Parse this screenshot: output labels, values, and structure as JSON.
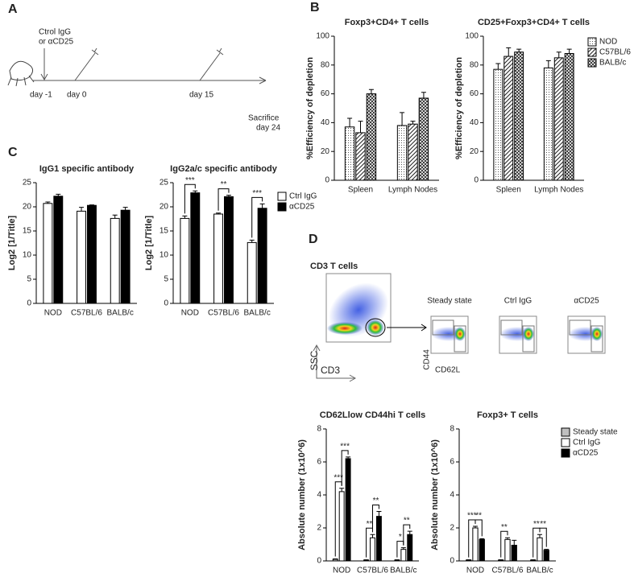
{
  "panel_labels": [
    "A",
    "B",
    "C",
    "D"
  ],
  "timeline": {
    "treatment": [
      "Ctrol IgG",
      "or αCD25"
    ],
    "days": [
      "day -1",
      "day 0",
      "day 15"
    ],
    "end": [
      "Sacrifice",
      "day 24"
    ]
  },
  "flow": {
    "title": "CD3 T cells",
    "y_axis": "SSC",
    "x_axis": "CD3",
    "conditions": [
      "Steady state",
      "Ctrl IgG",
      "αCD25"
    ],
    "gate_y": "CD44",
    "gate_x": "CD62L"
  },
  "chart_data": [
    {
      "type": "bar",
      "title": "Foxp3+CD4+ T cells",
      "ylabel": "%Efficiency of depletion",
      "categories": [
        "Spleen",
        "Lymph Nodes"
      ],
      "ylim": [
        0,
        100
      ],
      "yticks": [
        0,
        20,
        40,
        60,
        80,
        100
      ],
      "series": [
        {
          "name": "NOD",
          "color": "#ffffff",
          "pattern": "dots",
          "values": [
            37,
            38
          ],
          "errors": [
            6,
            9
          ]
        },
        {
          "name": "C57BL/6",
          "color": "#ffffff",
          "pattern": "diagonal",
          "values": [
            33,
            39
          ],
          "errors": [
            8,
            2
          ]
        },
        {
          "name": "BALB/c",
          "color": "#ffffff",
          "pattern": "cross",
          "values": [
            60,
            57
          ],
          "errors": [
            3,
            4
          ]
        }
      ]
    },
    {
      "type": "bar",
      "title": "CD25+Foxp3+CD4+ T cells",
      "ylabel": "%Efficiency of depletion",
      "categories": [
        "Spleen",
        "Lymph Nodes"
      ],
      "ylim": [
        0,
        100
      ],
      "yticks": [
        0,
        20,
        40,
        60,
        80,
        100
      ],
      "legend": "right",
      "series": [
        {
          "name": "NOD",
          "color": "#ffffff",
          "pattern": "dots",
          "values": [
            77,
            78
          ],
          "errors": [
            4,
            5
          ]
        },
        {
          "name": "C57BL/6",
          "color": "#ffffff",
          "pattern": "diagonal",
          "values": [
            86,
            85
          ],
          "errors": [
            6,
            4
          ]
        },
        {
          "name": "BALB/c",
          "color": "#ffffff",
          "pattern": "cross",
          "values": [
            89,
            88
          ],
          "errors": [
            2,
            3
          ]
        }
      ]
    },
    {
      "type": "bar",
      "title": "IgG1 specific antibody",
      "ylabel": "Log2 [1/Title]",
      "categories": [
        "NOD",
        "C57BL/6",
        "BALB/c"
      ],
      "ylim": [
        0,
        25
      ],
      "yticks": [
        0,
        5,
        10,
        15,
        20,
        25
      ],
      "series": [
        {
          "name": "Ctrl IgG",
          "color": "#ffffff",
          "values": [
            20.7,
            19.1,
            17.6
          ],
          "errors": [
            0.3,
            0.8,
            0.7
          ]
        },
        {
          "name": "αCD25",
          "color": "#000000",
          "values": [
            22.2,
            20.3,
            19.3
          ],
          "errors": [
            0.4,
            0.1,
            0.6
          ]
        }
      ]
    },
    {
      "type": "bar",
      "title": "IgG2a/c specific antibody",
      "ylabel": "Log2 [1/Title]",
      "categories": [
        "NOD",
        "C57BL/6",
        "BALB/c"
      ],
      "ylim": [
        0,
        25
      ],
      "yticks": [
        0,
        5,
        10,
        15,
        20,
        25
      ],
      "legend": "right",
      "series": [
        {
          "name": "Ctrl IgG",
          "color": "#ffffff",
          "values": [
            17.6,
            18.5,
            12.6
          ],
          "errors": [
            0.5,
            0.2,
            0.5
          ]
        },
        {
          "name": "αCD25",
          "color": "#000000",
          "values": [
            22.9,
            22.1,
            19.7
          ],
          "errors": [
            0.4,
            0.3,
            0.9
          ]
        }
      ],
      "annotations": [
        {
          "text": "***",
          "category": "NOD",
          "from": "Ctrl IgG",
          "to": "αCD25"
        },
        {
          "text": "**",
          "category": "C57BL/6",
          "from": "Ctrl IgG",
          "to": "αCD25"
        },
        {
          "text": "***",
          "category": "BALB/c",
          "from": "Ctrl IgG",
          "to": "αCD25"
        }
      ]
    },
    {
      "type": "bar",
      "title": "CD62Llow CD44hi T cells",
      "ylabel": "Absolute number (1x10^6)",
      "categories": [
        "NOD",
        "C57BL/6",
        "BALB/c"
      ],
      "ylim": [
        0,
        8
      ],
      "yticks": [
        0,
        2,
        4,
        6,
        8
      ],
      "series": [
        {
          "name": "Steady state",
          "color": "#bfbfbf",
          "values": [
            0.1,
            0.05,
            0.05
          ],
          "errors": [
            0.02,
            0.02,
            0.02
          ]
        },
        {
          "name": "Ctrl IgG",
          "color": "#ffffff",
          "values": [
            4.2,
            1.4,
            0.7
          ],
          "errors": [
            0.2,
            0.2,
            0.1
          ]
        },
        {
          "name": "αCD25",
          "color": "#000000",
          "values": [
            6.2,
            2.7,
            1.6
          ],
          "errors": [
            0.1,
            0.3,
            0.2
          ]
        }
      ],
      "annotations": [
        {
          "text": "***",
          "category": "NOD",
          "from": "Steady state",
          "to": "Ctrl IgG"
        },
        {
          "text": "***",
          "category": "NOD",
          "from": "Ctrl IgG",
          "to": "αCD25"
        },
        {
          "text": "**",
          "category": "C57BL/6",
          "from": "Steady state",
          "to": "Ctrl IgG"
        },
        {
          "text": "**",
          "category": "C57BL/6",
          "from": "Ctrl IgG",
          "to": "αCD25"
        },
        {
          "text": "*",
          "category": "BALB/c",
          "from": "Steady state",
          "to": "Ctrl IgG"
        },
        {
          "text": "**",
          "category": "BALB/c",
          "from": "Ctrl IgG",
          "to": "αCD25"
        }
      ]
    },
    {
      "type": "bar",
      "title": "Foxp3+ T cells",
      "ylabel": "Absolute number (1x10^6)",
      "categories": [
        "NOD",
        "C57BL/6",
        "BALB/c"
      ],
      "ylim": [
        0,
        8
      ],
      "yticks": [
        0,
        2,
        4,
        6,
        8
      ],
      "legend": "right",
      "series": [
        {
          "name": "Steady state",
          "color": "#bfbfbf",
          "values": [
            0.05,
            0.05,
            0.05
          ],
          "errors": [
            0.02,
            0.02,
            0.02
          ]
        },
        {
          "name": "Ctrl IgG",
          "color": "#ffffff",
          "values": [
            2.0,
            1.3,
            1.4
          ],
          "errors": [
            0.1,
            0.1,
            0.2
          ]
        },
        {
          "name": "αCD25",
          "color": "#000000",
          "values": [
            1.3,
            0.95,
            0.65
          ],
          "errors": [
            0.05,
            0.3,
            0.05
          ]
        }
      ],
      "annotations": [
        {
          "text": "***",
          "category": "NOD",
          "from": "Steady state",
          "to": "Ctrl IgG"
        },
        {
          "text": "**",
          "category": "NOD",
          "from": "Ctrl IgG",
          "to": "αCD25"
        },
        {
          "text": "**",
          "category": "C57BL/6",
          "from": "Steady state",
          "to": "Ctrl IgG"
        },
        {
          "text": "**",
          "category": "BALB/c",
          "from": "Steady state",
          "to": "Ctrl IgG"
        },
        {
          "text": "**",
          "category": "BALB/c",
          "from": "Ctrl IgG",
          "to": "αCD25"
        }
      ]
    }
  ]
}
